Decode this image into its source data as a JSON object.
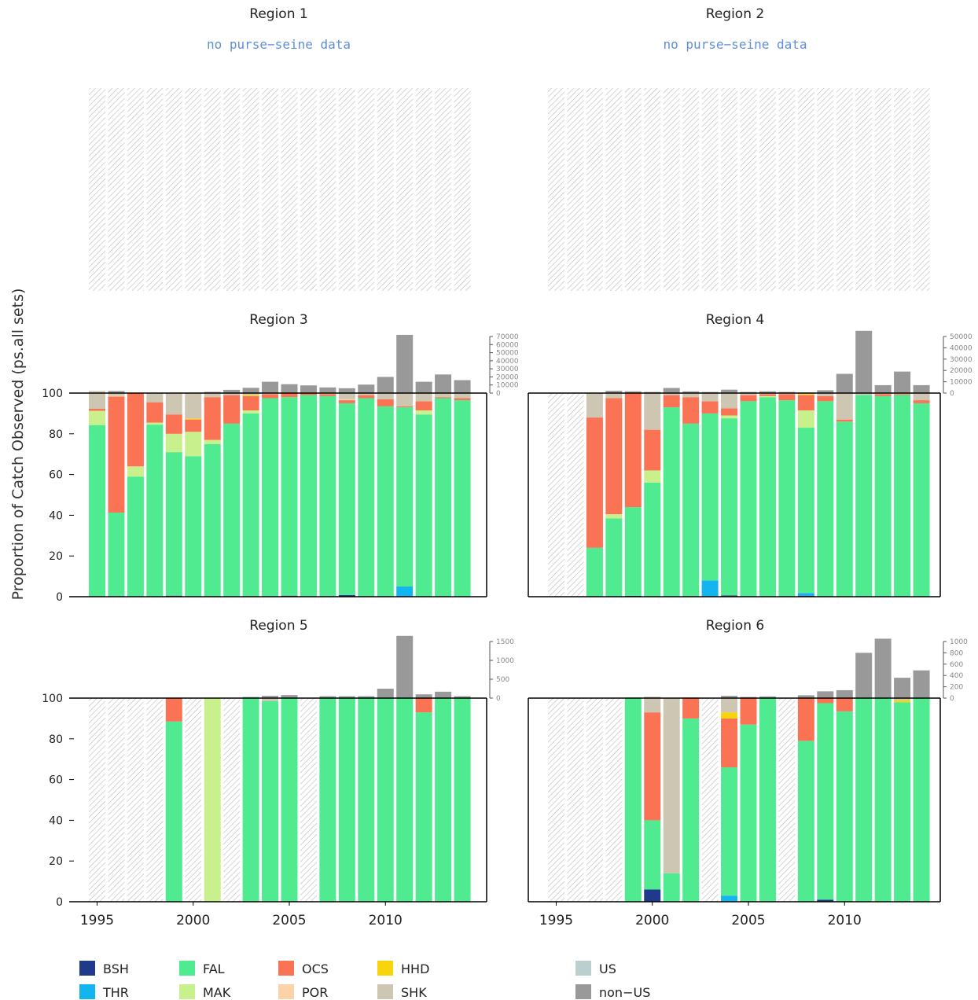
{
  "ylabel": "Proportion of Catch Observed (ps.all sets)",
  "years": [
    1995,
    1996,
    1997,
    1998,
    1999,
    2000,
    2001,
    2002,
    2003,
    2004,
    2005,
    2006,
    2007,
    2008,
    2009,
    2010,
    2011,
    2012,
    2013,
    2014
  ],
  "x_tick_labels": [
    "1995",
    "2000",
    "2005",
    "2010"
  ],
  "y_ticks": [
    "0",
    "20",
    "40",
    "60",
    "80",
    "100"
  ],
  "colors": {
    "BSH": "#1f3a8a",
    "THR": "#12b5f0",
    "FAL": "#50eb91",
    "MAK": "#c8f08c",
    "OCS": "#fa7355",
    "POR": "#fcd2a8",
    "HHD": "#f8d40c",
    "SHK": "#cdc6b2",
    "US": "#bccfcf",
    "non-US": "#999999",
    "nodata_hatch": "#bdbdbd"
  },
  "legend": [
    {
      "code": "BSH",
      "label": "BSH"
    },
    {
      "code": "THR",
      "label": "THR"
    },
    {
      "code": "FAL",
      "label": "FAL"
    },
    {
      "code": "MAK",
      "label": "MAK"
    },
    {
      "code": "OCS",
      "label": "OCS"
    },
    {
      "code": "POR",
      "label": "POR"
    },
    {
      "code": "HHD",
      "label": "HHD"
    },
    {
      "code": "SHK",
      "label": "SHK"
    },
    {
      "code": "US",
      "label": "US"
    },
    {
      "code": "non-US",
      "label": "non−US"
    }
  ],
  "chart_data": [
    {
      "type": "bar",
      "title": "Region 1",
      "note": "no purse−seine data",
      "nodata": true,
      "ylim": [
        0,
        100
      ]
    },
    {
      "type": "bar",
      "title": "Region 2",
      "note": "no purse−seine data",
      "nodata": true,
      "ylim": [
        0,
        100
      ]
    },
    {
      "type": "bar",
      "title": "Region 3",
      "ylim": [
        0,
        100
      ],
      "catch_axis": {
        "max": 70000,
        "ticks": [
          "0",
          "10000",
          "20000",
          "30000",
          "40000",
          "50000",
          "60000",
          "70000"
        ]
      },
      "catch_totals": [
        1000,
        2500,
        null,
        null,
        null,
        null,
        1500,
        4000,
        6500,
        14000,
        11000,
        9500,
        7000,
        6000,
        10500,
        20000,
        72000,
        14000,
        23000,
        16000
      ],
      "stacks": [
        {
          "BSH": 0.3,
          "FAL": 84,
          "MAK": 7,
          "OCS": 1,
          "SHK": 8.7
        },
        {
          "BSH": 0.3,
          "FAL": 41,
          "OCS": 57,
          "POR": 0.5,
          "SHK": 1.2
        },
        {
          "FAL": 59,
          "MAK": 5,
          "OCS": 36
        },
        {
          "FAL": 84.5,
          "MAK": 1,
          "OCS": 10,
          "SHK": 4.5
        },
        {
          "BSH": 0.5,
          "FAL": 70.5,
          "MAK": 9,
          "OCS": 9.5,
          "SHK": 10.5
        },
        {
          "FAL": 69,
          "MAK": 12,
          "OCS": 6,
          "HHD": 0.5,
          "SHK": 12.5
        },
        {
          "FAL": 75,
          "MAK": 2,
          "OCS": 21,
          "SHK": 2
        },
        {
          "FAL": 85,
          "OCS": 14,
          "SHK": 1
        },
        {
          "FAL": 90,
          "MAK": 1.5,
          "OCS": 7,
          "HHD": 0.5,
          "SHK": 1
        },
        {
          "FAL": 97.5,
          "OCS": 2,
          "SHK": 0.5
        },
        {
          "BSH": 0.5,
          "FAL": 97.5,
          "OCS": 2
        },
        {
          "FAL": 99,
          "OCS": 1
        },
        {
          "FAL": 98.5,
          "OCS": 1,
          "SHK": 0.5
        },
        {
          "BSH": 0.8,
          "FAL": 94.2,
          "OCS": 1.5,
          "POR": 0.5,
          "SHK": 3
        },
        {
          "FAL": 97.5,
          "OCS": 1.5,
          "SHK": 1
        },
        {
          "FAL": 93.5,
          "OCS": 3.5,
          "SHK": 3
        },
        {
          "THR": 5,
          "FAL": 88,
          "OCS": 0.5,
          "SHK": 6.5
        },
        {
          "FAL": 89.5,
          "MAK": 2,
          "OCS": 4.5,
          "SHK": 4
        },
        {
          "FAL": 97.5,
          "OCS": 0.5,
          "SHK": 2
        },
        {
          "FAL": 96.5,
          "OCS": 1,
          "SHK": 2.5
        }
      ]
    },
    {
      "type": "bar",
      "title": "Region 4",
      "ylim": [
        0,
        100
      ],
      "catch_axis": {
        "max": 50000,
        "ticks": [
          "0",
          "10000",
          "20000",
          "30000",
          "40000",
          "50000"
        ]
      },
      "catch_totals": [
        null,
        null,
        null,
        2000,
        1500,
        1000,
        4500,
        1500,
        1000,
        3000,
        1000,
        1500,
        1000,
        500,
        2500,
        17000,
        55000,
        7000,
        19000,
        7000
      ],
      "stacks": [
        null,
        null,
        {
          "FAL": 24,
          "OCS": 64,
          "SHK": 12
        },
        {
          "FAL": 38.5,
          "MAK": 2,
          "OCS": 57,
          "SHK": 2.5
        },
        {
          "BSH": 0.4,
          "FAL": 43.6,
          "OCS": 56
        },
        {
          "FAL": 56,
          "MAK": 6,
          "OCS": 20,
          "SHK": 18
        },
        {
          "FAL": 93,
          "OCS": 6,
          "SHK": 1
        },
        {
          "FAL": 85,
          "OCS": 13,
          "SHK": 2
        },
        {
          "THR": 8,
          "FAL": 82,
          "OCS": 6,
          "SHK": 4
        },
        {
          "BSH": 0.6,
          "FAL": 87,
          "MAK": 1.4,
          "OCS": 3.5,
          "SHK": 7.5
        },
        {
          "FAL": 96,
          "OCS": 3,
          "SHK": 1
        },
        {
          "FAL": 98,
          "MAK": 0.5,
          "OCS": 1,
          "SHK": 0.5
        },
        {
          "FAL": 96.5,
          "OCS": 3,
          "SHK": 0.5
        },
        {
          "BSH": 0.5,
          "THR": 1.3,
          "FAL": 81.2,
          "MAK": 8.5,
          "OCS": 7.5,
          "HHD": 0.5,
          "SHK": 0.5
        },
        {
          "FAL": 96,
          "OCS": 2.5,
          "SHK": 1.5
        },
        {
          "FAL": 86,
          "OCS": 1,
          "SHK": 13
        },
        {
          "FAL": 99,
          "SHK": 1
        },
        {
          "FAL": 98.5,
          "OCS": 1,
          "SHK": 0.5
        },
        {
          "FAL": 99,
          "OCS": 0.5,
          "SHK": 0.5
        },
        {
          "FAL": 95,
          "OCS": 1.5,
          "SHK": 3.5
        }
      ]
    },
    {
      "type": "bar",
      "title": "Region 5",
      "ylim": [
        0,
        100
      ],
      "catch_axis": {
        "max": 1500,
        "ticks": [
          "0",
          "500",
          "1000",
          "1500"
        ]
      },
      "catch_totals": [
        null,
        null,
        null,
        null,
        null,
        null,
        5,
        null,
        30,
        60,
        80,
        null,
        50,
        50,
        50,
        250,
        1650,
        100,
        170,
        50
      ],
      "stacks": [
        null,
        null,
        null,
        null,
        {
          "FAL": 88.5,
          "OCS": 11.5
        },
        null,
        {
          "MAK": 100
        },
        null,
        {
          "FAL": 100
        },
        {
          "FAL": 98.5,
          "SHK": 1.5
        },
        {
          "FAL": 100
        },
        null,
        {
          "FAL": 100
        },
        {
          "FAL": 100
        },
        {
          "FAL": 100
        },
        {
          "FAL": 100
        },
        {
          "FAL": 100
        },
        {
          "FAL": 93,
          "OCS": 7
        },
        {
          "FAL": 100
        },
        {
          "FAL": 100
        }
      ]
    },
    {
      "type": "bar",
      "title": "Region 6",
      "ylim": [
        0,
        100
      ],
      "catch_axis": {
        "max": 1000,
        "ticks": [
          "0",
          "200",
          "400",
          "600",
          "800",
          "1000"
        ]
      },
      "catch_totals": [
        null,
        null,
        null,
        null,
        10,
        20,
        null,
        10,
        null,
        40,
        20,
        30,
        null,
        50,
        120,
        140,
        800,
        1050,
        360,
        490
      ],
      "stacks": [
        null,
        null,
        null,
        null,
        {
          "FAL": 100
        },
        {
          "BSH": 6,
          "FAL": 34,
          "OCS": 53,
          "SHK": 7
        },
        {
          "FAL": 14,
          "SHK": 86
        },
        {
          "FAL": 90,
          "OCS": 10
        },
        null,
        {
          "THR": 3,
          "FAL": 63,
          "OCS": 24,
          "HHD": 3,
          "SHK": 7
        },
        {
          "FAL": 87,
          "OCS": 13
        },
        {
          "FAL": 100
        },
        null,
        {
          "FAL": 79,
          "OCS": 21
        },
        {
          "BSH": 1,
          "FAL": 96.5,
          "OCS": 2.5
        },
        {
          "FAL": 93.5,
          "OCS": 6.5
        },
        {
          "FAL": 100
        },
        {
          "FAL": 100
        },
        {
          "FAL": 98,
          "HHD": 1,
          "SHK": 1
        },
        {
          "FAL": 100
        }
      ]
    }
  ]
}
